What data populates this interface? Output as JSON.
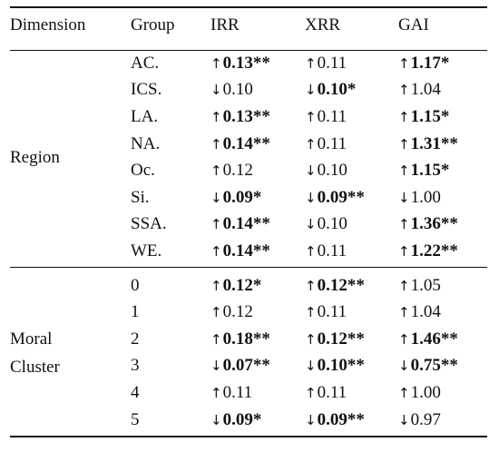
{
  "headers": [
    "Dimension",
    "Group",
    "IRR",
    "XRR",
    "GAI"
  ],
  "groups": [
    {
      "dimension_lines": [
        "Region"
      ],
      "rows": [
        {
          "group": "AC.",
          "cells": [
            {
              "dir": "↑",
              "val": "0.13**",
              "bold": true
            },
            {
              "dir": "↑",
              "val": "0.11",
              "bold": false
            },
            {
              "dir": "↑",
              "val": "1.17*",
              "bold": true
            }
          ]
        },
        {
          "group": "ICS.",
          "cells": [
            {
              "dir": "↓",
              "val": "0.10",
              "bold": false
            },
            {
              "dir": "↓",
              "val": "0.10*",
              "bold": true
            },
            {
              "dir": "↑",
              "val": "1.04",
              "bold": false
            }
          ]
        },
        {
          "group": "LA.",
          "cells": [
            {
              "dir": "↑",
              "val": "0.13**",
              "bold": true
            },
            {
              "dir": "↑",
              "val": "0.11",
              "bold": false
            },
            {
              "dir": "↑",
              "val": "1.15*",
              "bold": true
            }
          ]
        },
        {
          "group": "NA.",
          "cells": [
            {
              "dir": "↑",
              "val": "0.14**",
              "bold": true
            },
            {
              "dir": "↑",
              "val": "0.11",
              "bold": false
            },
            {
              "dir": "↑",
              "val": "1.31**",
              "bold": true
            }
          ]
        },
        {
          "group": "Oc.",
          "cells": [
            {
              "dir": "↑",
              "val": "0.12",
              "bold": false
            },
            {
              "dir": "↓",
              "val": "0.10",
              "bold": false
            },
            {
              "dir": "↑",
              "val": "1.15*",
              "bold": true
            }
          ]
        },
        {
          "group": "Si.",
          "cells": [
            {
              "dir": "↓",
              "val": "0.09*",
              "bold": true
            },
            {
              "dir": "↓",
              "val": "0.09**",
              "bold": true
            },
            {
              "dir": "↓",
              "val": "1.00",
              "bold": false
            }
          ]
        },
        {
          "group": "SSA.",
          "cells": [
            {
              "dir": "↑",
              "val": "0.14**",
              "bold": true
            },
            {
              "dir": "↓",
              "val": "0.10",
              "bold": false
            },
            {
              "dir": "↑",
              "val": "1.36**",
              "bold": true
            }
          ]
        },
        {
          "group": "WE.",
          "cells": [
            {
              "dir": "↑",
              "val": "0.14**",
              "bold": true
            },
            {
              "dir": "↑",
              "val": "0.11",
              "bold": false
            },
            {
              "dir": "↑",
              "val": "1.22**",
              "bold": true
            }
          ]
        }
      ]
    },
    {
      "dimension_lines": [
        "Moral",
        "Cluster"
      ],
      "rows": [
        {
          "group": "0",
          "cells": [
            {
              "dir": "↑",
              "val": "0.12*",
              "bold": true
            },
            {
              "dir": "↑",
              "val": "0.12**",
              "bold": true
            },
            {
              "dir": "↑",
              "val": "1.05",
              "bold": false
            }
          ]
        },
        {
          "group": "1",
          "cells": [
            {
              "dir": "↑",
              "val": "0.12",
              "bold": false
            },
            {
              "dir": "↑",
              "val": "0.11",
              "bold": false
            },
            {
              "dir": "↑",
              "val": "1.04",
              "bold": false
            }
          ]
        },
        {
          "group": "2",
          "cells": [
            {
              "dir": "↑",
              "val": "0.18**",
              "bold": true
            },
            {
              "dir": "↑",
              "val": "0.12**",
              "bold": true
            },
            {
              "dir": "↑",
              "val": "1.46**",
              "bold": true
            }
          ]
        },
        {
          "group": "3",
          "cells": [
            {
              "dir": "↓",
              "val": "0.07**",
              "bold": true
            },
            {
              "dir": "↓",
              "val": "0.10**",
              "bold": true
            },
            {
              "dir": "↓",
              "val": "0.75**",
              "bold": true
            }
          ]
        },
        {
          "group": "4",
          "cells": [
            {
              "dir": "↑",
              "val": "0.11",
              "bold": false
            },
            {
              "dir": "↑",
              "val": "0.11",
              "bold": false
            },
            {
              "dir": "↑",
              "val": "1.00",
              "bold": false
            }
          ]
        },
        {
          "group": "5",
          "cells": [
            {
              "dir": "↓",
              "val": "0.09*",
              "bold": true
            },
            {
              "dir": "↓",
              "val": "0.09**",
              "bold": true
            },
            {
              "dir": "↓",
              "val": "0.97",
              "bold": false
            }
          ]
        }
      ]
    }
  ]
}
